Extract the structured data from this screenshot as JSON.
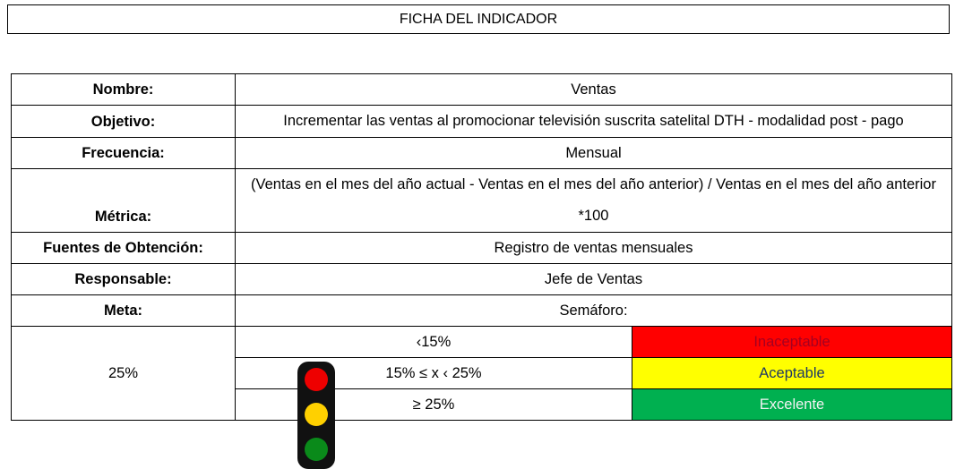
{
  "header": {
    "title": "FICHA DEL INDICADOR"
  },
  "table": {
    "rows": [
      {
        "label": "Nombre:",
        "value": "Ventas"
      },
      {
        "label": "Objetivo:",
        "value": "Incrementar las ventas al promocionar televisión suscrita satelital DTH - modalidad post - pago"
      },
      {
        "label": "Frecuencia:",
        "value": "Mensual"
      },
      {
        "label": "Métrica:",
        "value": "(Ventas en el mes del año actual - Ventas en el mes del año anterior) / Ventas en el mes del año anterior *100"
      },
      {
        "label": "Fuentes de Obtención:",
        "value": "Registro de ventas mensuales"
      },
      {
        "label": "Responsable:",
        "value": "Jefe de Ventas"
      },
      {
        "label": "Meta:",
        "value": "Semáforo:"
      }
    ],
    "goal": "25%",
    "semaforo": [
      {
        "range": "‹15%",
        "status": "Inaceptable",
        "color": "#ff0000",
        "text_color": "#a50021"
      },
      {
        "range": "15% ≤ x ‹ 25%",
        "status": "Aceptable",
        "color": "#ffff00",
        "text_color": "#1f3864"
      },
      {
        "range": "≥ 25%",
        "status": "Excelente",
        "color": "#00b050",
        "text_color": "#f2f2f2"
      }
    ]
  }
}
